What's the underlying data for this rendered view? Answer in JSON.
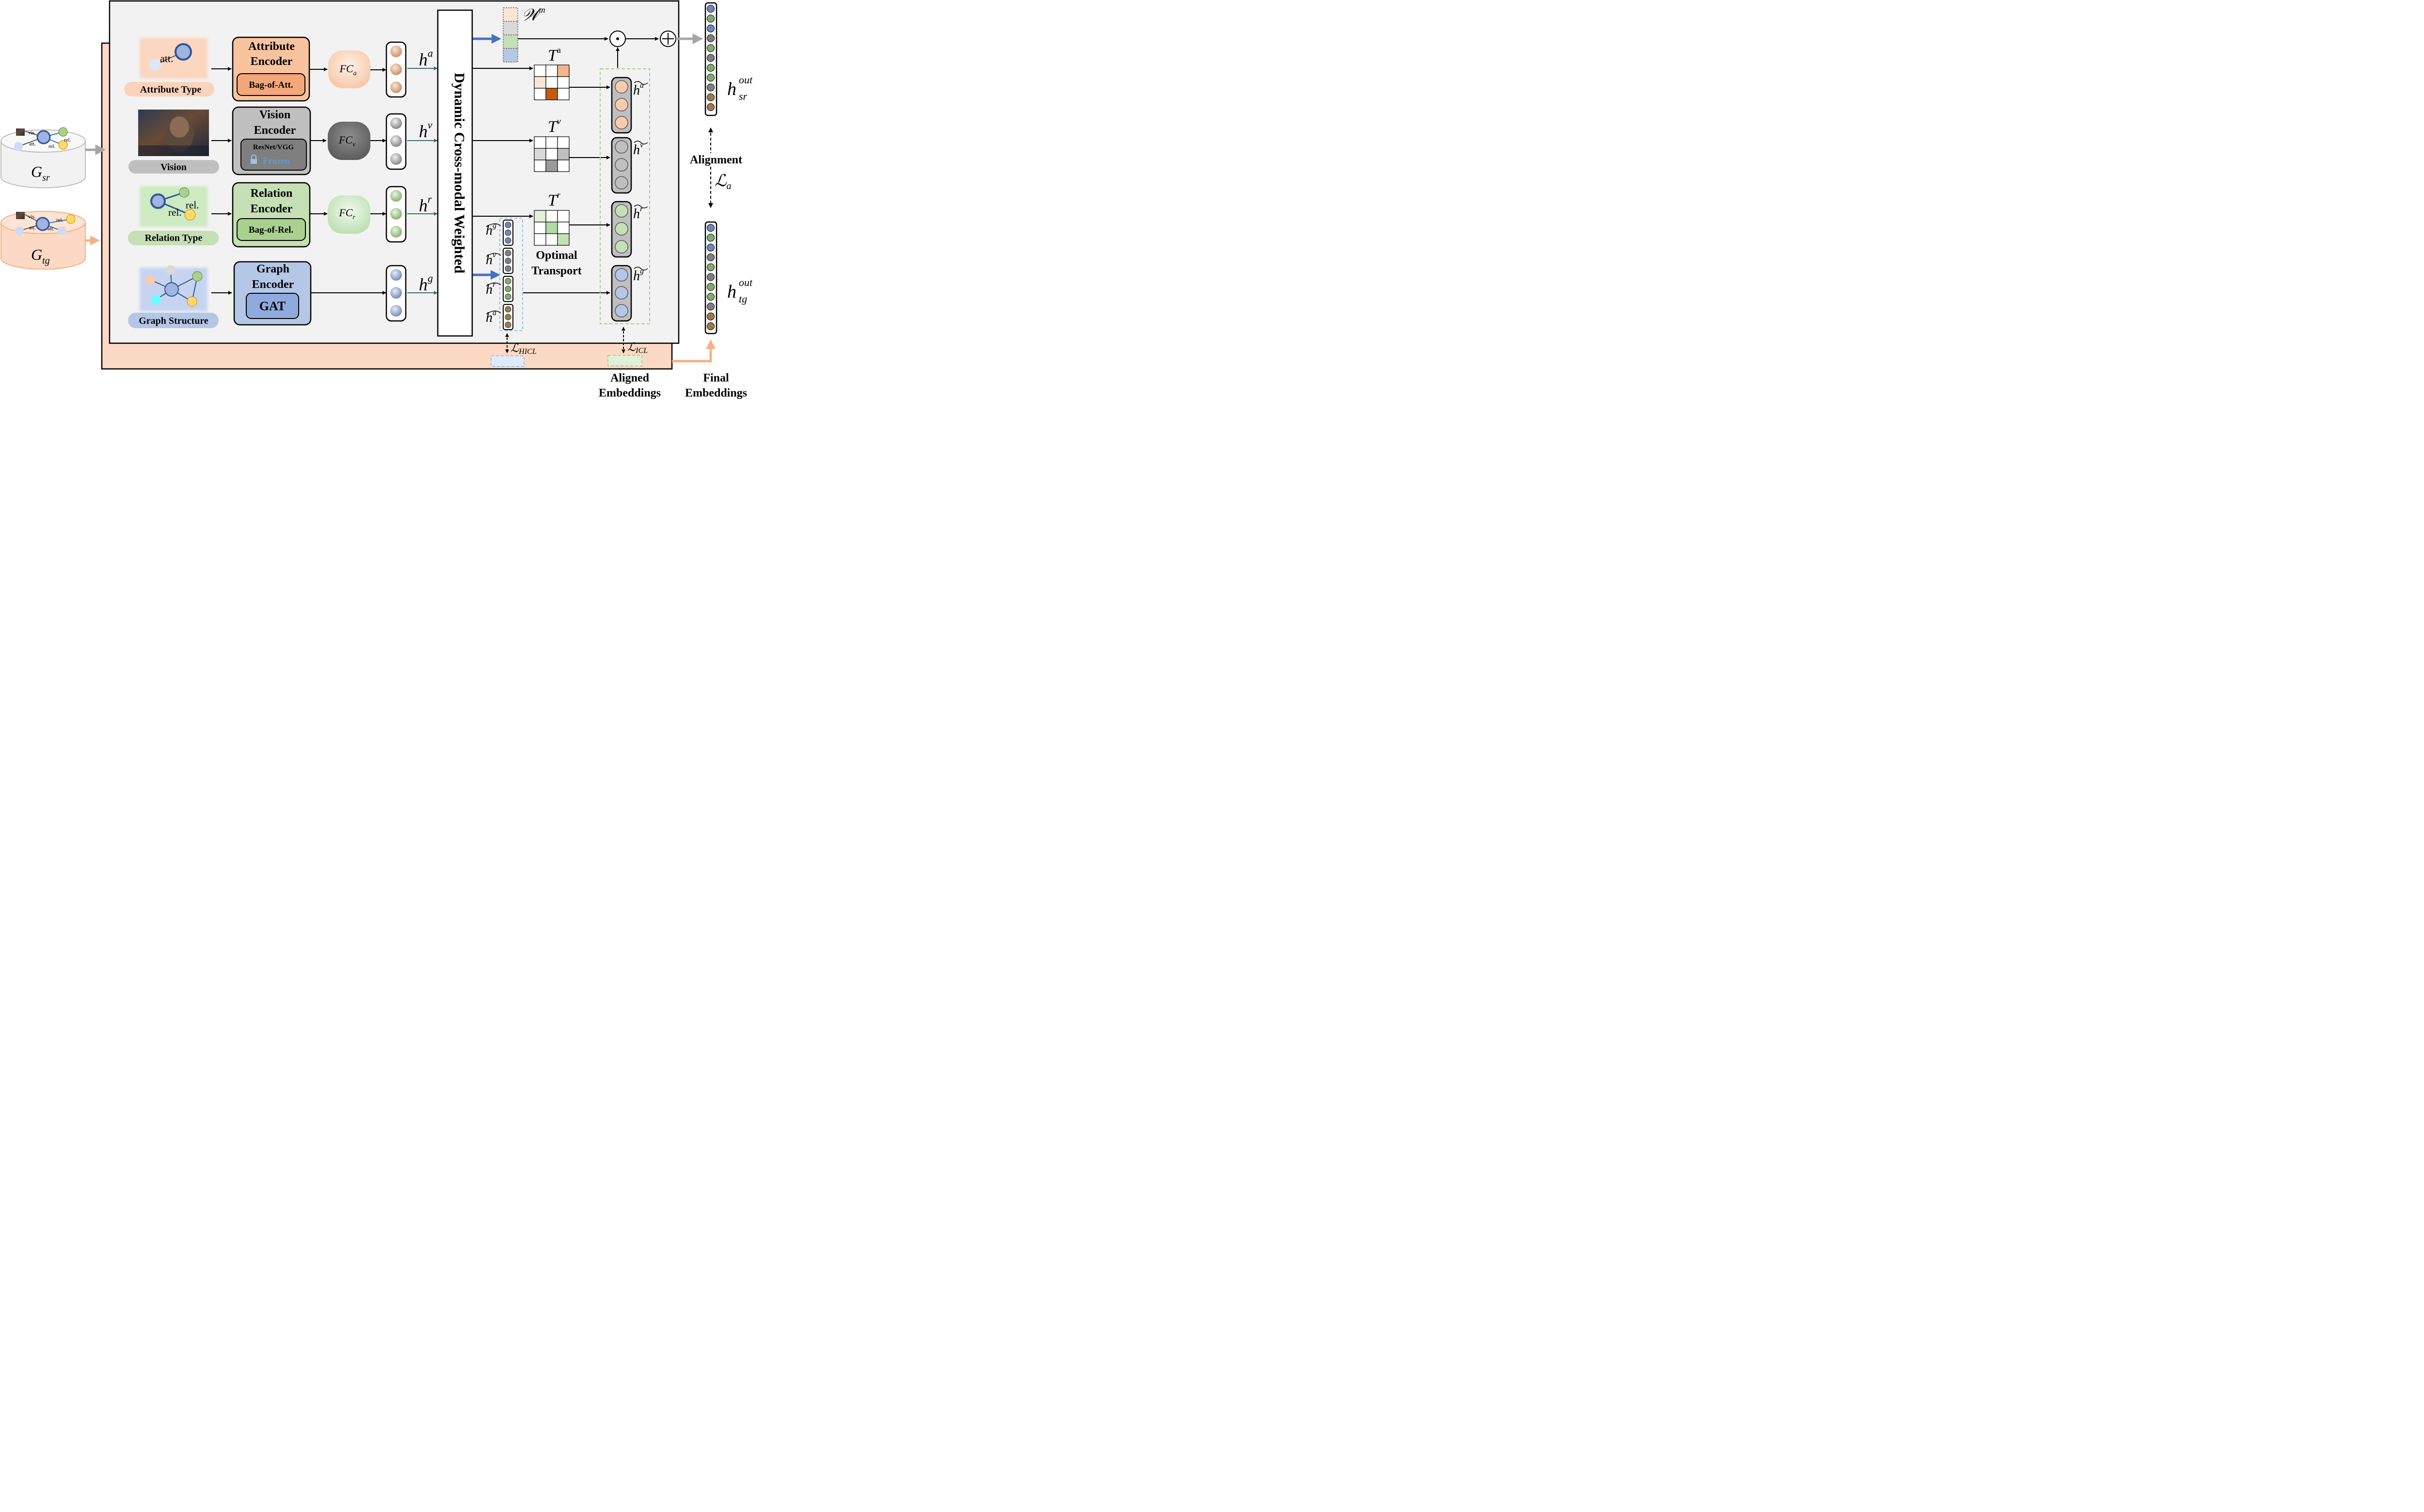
{
  "inputs": {
    "attribute": "Attribute Type",
    "vision": "Vision",
    "relation": "Relation Type",
    "graph": "Graph Structure",
    "att_text": "att.",
    "rel_text": "rel."
  },
  "encoders": {
    "attribute_title": [
      "Attribute",
      "Encoder"
    ],
    "attribute_inner": "Bag-of-Att.",
    "vision_title": [
      "Vision",
      "Encoder"
    ],
    "vision_inner": "ResNet/VGG",
    "vision_frozen": "Frozen",
    "relation_title": [
      "Relation",
      "Encoder"
    ],
    "relation_inner": "Bag-of-Rel.",
    "graph_title": [
      "Graph",
      "Encoder"
    ],
    "graph_inner": "GAT"
  },
  "fc": {
    "sub": [
      "a",
      "v",
      "r"
    ],
    "main": "FC"
  },
  "hidden": {
    "main": "h",
    "sup": [
      "a",
      "v",
      "r",
      "g"
    ]
  },
  "dcw": "Dynamic Cross-modal Weighted",
  "weights": {
    "main": "𝒲",
    "sup": "m"
  },
  "transport": {
    "main": "T",
    "sup": [
      "a",
      "v",
      "r"
    ],
    "title": [
      "Optimal",
      "Transport"
    ]
  },
  "hat_labels": [
    "g",
    "v",
    "r",
    "a"
  ],
  "tilde_labels": [
    "a",
    "v",
    "r",
    "g"
  ],
  "losses": {
    "hicl_main": "ℒ",
    "hicl_sub": "HICL",
    "icl_main": "ℒ",
    "icl_sub": "ICL",
    "align_main": "ℒ",
    "align_sub": "a",
    "alignment": "Alignment"
  },
  "outputs": {
    "sr_main": "h",
    "sr_sup": "out",
    "sr_sub": "sr",
    "tg_main": "h",
    "tg_sup": "out",
    "tg_sub": "tg",
    "aligned": [
      "Aligned",
      "Embeddings"
    ],
    "final": [
      "Final",
      "Embeddings"
    ]
  },
  "graphs": {
    "main": "G",
    "sr_sub": "sr",
    "tg_sub": "tg",
    "vis": "vis.",
    "att": "att.",
    "rel": "rel."
  },
  "ops": {
    "dot": "⊙",
    "plus": "⊕"
  },
  "colors": {
    "attribute": "#f5b58e",
    "vision": "#9a9a9a",
    "relation": "#b3dba6",
    "graph": "#9fb4e0",
    "target": "#fbd9c4",
    "hicl_box": "#9ec3e6",
    "icl_box": "#a9d18e",
    "accent_arrow": "#4472c4",
    "orange_arrow": "#f4b183",
    "gray_arrow": "#a6a6a6",
    "heat_dark": "#c55a11"
  }
}
